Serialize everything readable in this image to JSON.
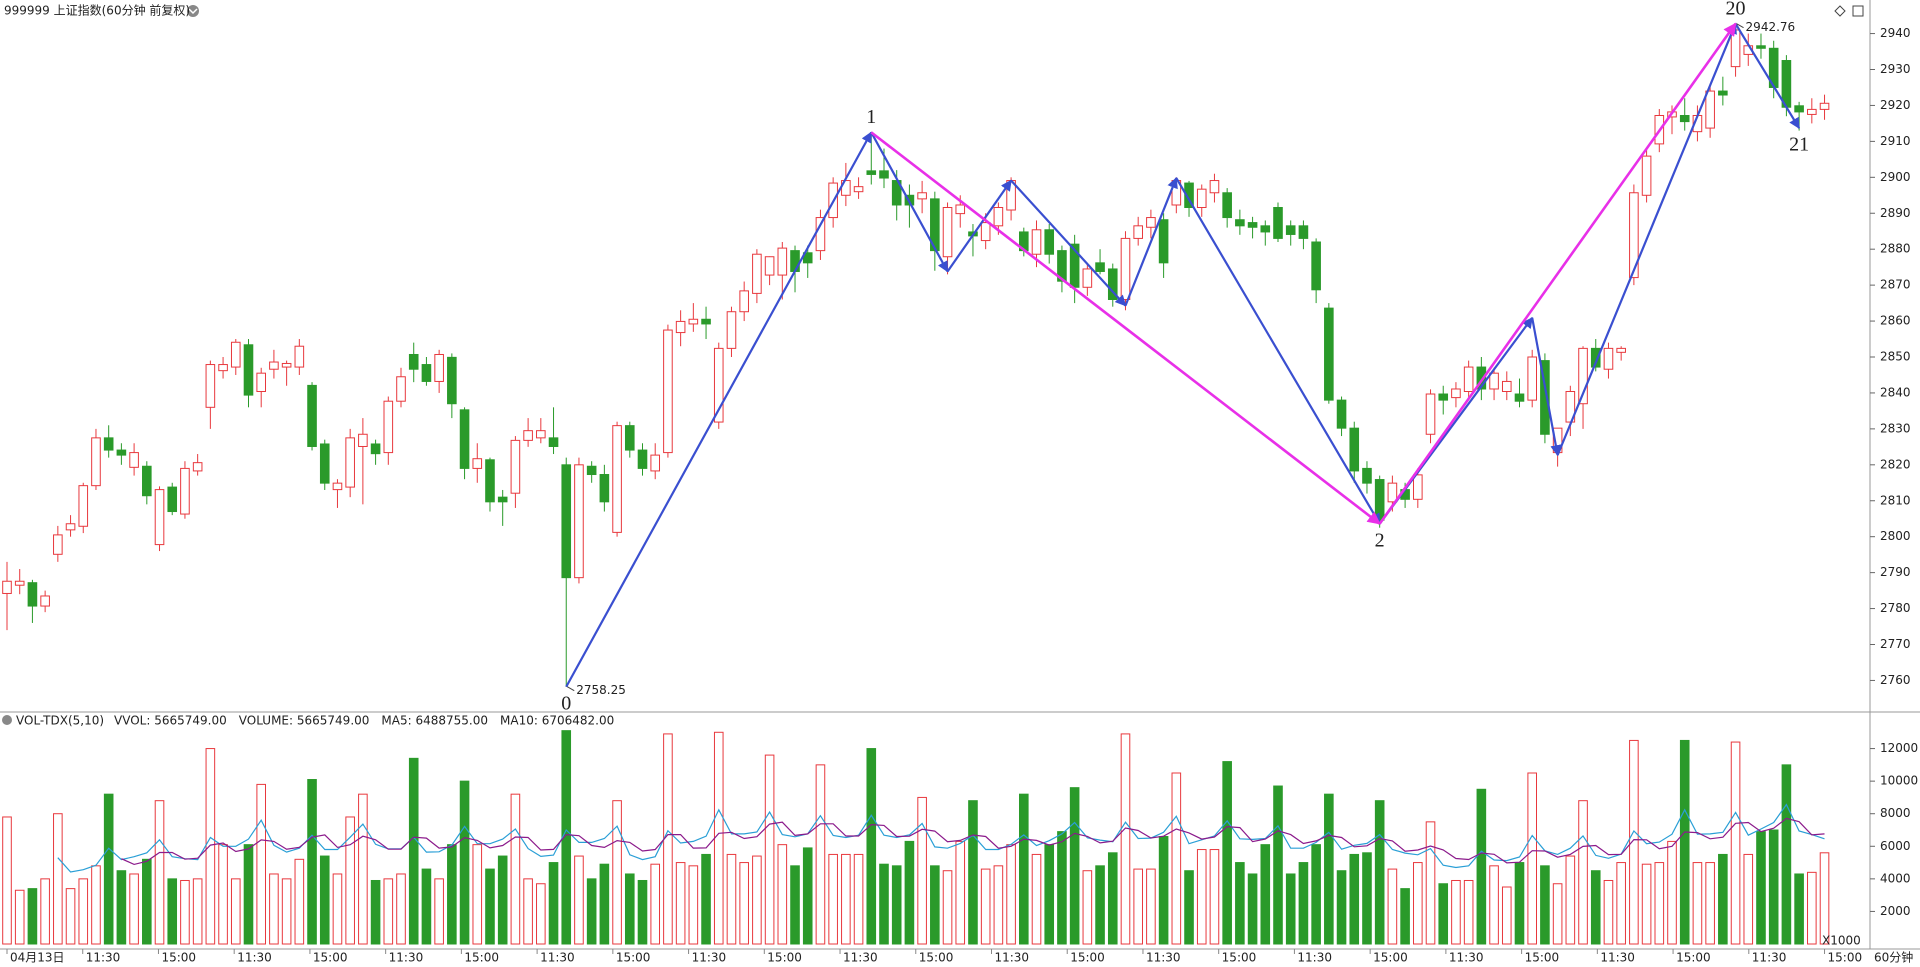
{
  "chart_data": [
    {
      "type": "candlestick",
      "title": "999999 上证指数(60分钟 前复权)",
      "up_color": "#e8383d",
      "down_color": "#2a9a2a",
      "ylim": [
        2754,
        2946
      ],
      "yticks": [
        2760,
        2770,
        2780,
        2790,
        2800,
        2810,
        2820,
        2830,
        2840,
        2850,
        2860,
        2870,
        2880,
        2890,
        2900,
        2910,
        2920,
        2930,
        2940
      ],
      "candles": [
        [
          2784.2,
          2793,
          2774,
          2787.6
        ],
        [
          2786.5,
          2791,
          2784,
          2787.6
        ],
        [
          2787.2,
          2788,
          2776,
          2780.7
        ],
        [
          2780.7,
          2785,
          2779,
          2783.5
        ],
        [
          2795.1,
          2803,
          2793,
          2800.5
        ],
        [
          2801.9,
          2806,
          2800,
          2803.6
        ],
        [
          2802.9,
          2815,
          2801,
          2814.2
        ],
        [
          2814.2,
          2830,
          2813,
          2827.5
        ],
        [
          2827.5,
          2831,
          2822,
          2824.1
        ],
        [
          2824.1,
          2826,
          2820,
          2822.7
        ],
        [
          2819.3,
          2826,
          2817,
          2823.4
        ],
        [
          2819.6,
          2821,
          2809,
          2811.4
        ],
        [
          2797.8,
          2814,
          2796,
          2813.1
        ],
        [
          2813.8,
          2815,
          2806,
          2807
        ],
        [
          2806.3,
          2821,
          2805,
          2819
        ],
        [
          2818.3,
          2823,
          2817,
          2820.6
        ],
        [
          2836,
          2849,
          2830,
          2847.9
        ],
        [
          2846.2,
          2850,
          2844,
          2847.9
        ],
        [
          2847.2,
          2855,
          2845,
          2854.1
        ],
        [
          2853.4,
          2855,
          2836,
          2839.4
        ],
        [
          2840.4,
          2847,
          2836,
          2845.5
        ],
        [
          2846.6,
          2852,
          2844,
          2848.6
        ],
        [
          2847.2,
          2849,
          2842,
          2848.2
        ],
        [
          2847.2,
          2855,
          2845,
          2853
        ],
        [
          2842.1,
          2843,
          2824,
          2825.1
        ],
        [
          2825.8,
          2827,
          2813,
          2814.9
        ],
        [
          2813.1,
          2816,
          2808,
          2814.9
        ],
        [
          2813.8,
          2830,
          2811,
          2827.5
        ],
        [
          2825.1,
          2833,
          2809,
          2828.5
        ],
        [
          2825.8,
          2827,
          2820,
          2823.1
        ],
        [
          2823.4,
          2839,
          2820,
          2837.7
        ],
        [
          2837.7,
          2847,
          2836,
          2844.5
        ],
        [
          2850.7,
          2854,
          2843,
          2846.6
        ],
        [
          2847.9,
          2850,
          2842,
          2843.2
        ],
        [
          2843.2,
          2852,
          2840,
          2850.7
        ],
        [
          2849.9,
          2851,
          2833,
          2837
        ],
        [
          2835.3,
          2836,
          2816,
          2819
        ],
        [
          2819,
          2826,
          2815,
          2821.7
        ],
        [
          2821.4,
          2822,
          2807,
          2809.7
        ],
        [
          2811,
          2813,
          2803,
          2809.7
        ],
        [
          2812.1,
          2828,
          2808,
          2826.8
        ],
        [
          2826.8,
          2833,
          2825,
          2829.5
        ],
        [
          2827.5,
          2833,
          2826,
          2829.5
        ],
        [
          2827.5,
          2836,
          2823,
          2825.1
        ],
        [
          2820,
          2822,
          2758.25,
          2788.6
        ],
        [
          2788.6,
          2822,
          2787,
          2820
        ],
        [
          2819.6,
          2821,
          2815,
          2817.3
        ],
        [
          2817.3,
          2820,
          2807,
          2809.7
        ],
        [
          2801.2,
          2832,
          2800,
          2830.9
        ],
        [
          2830.9,
          2832,
          2822,
          2824.1
        ],
        [
          2824.1,
          2826,
          2817,
          2819
        ],
        [
          2818.3,
          2826,
          2816,
          2822.7
        ],
        [
          2823.4,
          2859,
          2822,
          2857.5
        ],
        [
          2856.8,
          2863,
          2853,
          2859.9
        ],
        [
          2859.2,
          2865,
          2857,
          2860.5
        ],
        [
          2860.5,
          2864,
          2855,
          2859.2
        ],
        [
          2831.9,
          2854,
          2830,
          2852.4
        ],
        [
          2852.4,
          2864,
          2850,
          2862.6
        ],
        [
          2862.6,
          2871,
          2860,
          2868.4
        ],
        [
          2867.7,
          2880,
          2865,
          2878.6
        ],
        [
          2872.8,
          2878,
          2870,
          2877.9
        ],
        [
          2872.8,
          2882,
          2866,
          2880.3
        ],
        [
          2879.6,
          2881,
          2868,
          2873.8
        ],
        [
          2879,
          2881,
          2872,
          2876.2
        ],
        [
          2879.6,
          2891,
          2877,
          2888.8
        ],
        [
          2888.8,
          2900,
          2886,
          2898.4
        ],
        [
          2895,
          2904,
          2892,
          2899.1
        ],
        [
          2896,
          2900,
          2894,
          2897.4
        ],
        [
          2901.8,
          2912.5,
          2898,
          2900.8
        ],
        [
          2901.8,
          2908,
          2897,
          2899.8
        ],
        [
          2899.1,
          2902,
          2888,
          2892.3
        ],
        [
          2895,
          2898,
          2886,
          2892.3
        ],
        [
          2894,
          2899,
          2890,
          2895.7
        ],
        [
          2894,
          2896,
          2874,
          2879.6
        ],
        [
          2877.9,
          2893,
          2873,
          2891.6
        ],
        [
          2889.9,
          2895,
          2886,
          2892.3
        ],
        [
          2884.8,
          2887,
          2878,
          2883.7
        ],
        [
          2882.4,
          2890,
          2880,
          2887.4
        ],
        [
          2886.5,
          2893,
          2884,
          2891.6
        ],
        [
          2890.9,
          2900,
          2888,
          2899.1
        ],
        [
          2884.8,
          2886,
          2878,
          2879.6
        ],
        [
          2878.6,
          2888,
          2875,
          2885.4
        ],
        [
          2885.4,
          2887,
          2876,
          2878.6
        ],
        [
          2879.6,
          2881,
          2868,
          2871.1
        ],
        [
          2881.4,
          2884,
          2865,
          2869.4
        ],
        [
          2869.4,
          2876,
          2867,
          2874.5
        ],
        [
          2876.2,
          2880,
          2873,
          2873.8
        ],
        [
          2874.5,
          2876,
          2864,
          2866
        ],
        [
          2866,
          2885,
          2863,
          2883
        ],
        [
          2883,
          2889,
          2881,
          2886.5
        ],
        [
          2886.1,
          2891,
          2883,
          2888.8
        ],
        [
          2888.2,
          2890,
          2872,
          2876.2
        ],
        [
          2892.3,
          2900,
          2890,
          2899.1
        ],
        [
          2898.4,
          2899,
          2889,
          2891.6
        ],
        [
          2891.6,
          2898,
          2889,
          2896.7
        ],
        [
          2895.7,
          2901,
          2893,
          2899.1
        ],
        [
          2895.7,
          2897,
          2886,
          2888.8
        ],
        [
          2888.2,
          2891,
          2884,
          2886.5
        ],
        [
          2887.4,
          2889,
          2883,
          2886.1
        ],
        [
          2886.5,
          2888,
          2881,
          2884.8
        ],
        [
          2891.6,
          2893,
          2882,
          2883
        ],
        [
          2886.5,
          2888,
          2881,
          2884.1
        ],
        [
          2886.5,
          2888,
          2880,
          2883
        ],
        [
          2882,
          2883,
          2865,
          2868.7
        ],
        [
          2863.6,
          2865,
          2837,
          2838
        ],
        [
          2838,
          2839,
          2828,
          2830.2
        ],
        [
          2830.2,
          2832,
          2815,
          2818.3
        ],
        [
          2819,
          2821,
          2812,
          2814.9
        ],
        [
          2815.9,
          2817,
          2802.5,
          2804.6
        ],
        [
          2809.7,
          2817,
          2807,
          2814.9
        ],
        [
          2813.1,
          2815,
          2808,
          2810.4
        ],
        [
          2810.4,
          2819,
          2808,
          2817.2
        ],
        [
          2828.5,
          2841,
          2826,
          2839.7
        ],
        [
          2839.7,
          2842,
          2834,
          2838
        ],
        [
          2838.7,
          2843,
          2836,
          2841.1
        ],
        [
          2840.4,
          2849,
          2838,
          2847.2
        ],
        [
          2847.2,
          2850,
          2838,
          2841.1
        ],
        [
          2841.1,
          2847,
          2838,
          2845.5
        ],
        [
          2840.4,
          2846,
          2838,
          2843.2
        ],
        [
          2839.7,
          2844,
          2836,
          2837.7
        ],
        [
          2838,
          2852,
          2836,
          2850
        ],
        [
          2849,
          2851,
          2826,
          2828.5
        ],
        [
          2823.4,
          2830,
          2819.5,
          2830.2
        ],
        [
          2831.9,
          2842,
          2828,
          2840.4
        ],
        [
          2837,
          2853,
          2830,
          2852.4
        ],
        [
          2852.4,
          2855,
          2846,
          2847.2
        ],
        [
          2846.6,
          2854,
          2844,
          2852.4
        ],
        [
          2851.3,
          2853,
          2849,
          2852.4
        ],
        [
          2872.1,
          2898,
          2870,
          2895.7
        ],
        [
          2895,
          2908,
          2893,
          2905.9
        ],
        [
          2909.3,
          2919,
          2907,
          2917.2
        ],
        [
          2916.8,
          2920,
          2912,
          2918.2
        ],
        [
          2917.2,
          2922,
          2913,
          2915.5
        ],
        [
          2912.7,
          2920,
          2910,
          2917.2
        ],
        [
          2913.7,
          2926,
          2911,
          2924
        ],
        [
          2924,
          2928,
          2920,
          2922.9
        ],
        [
          2930.8,
          2942.76,
          2928,
          2941
        ],
        [
          2934.2,
          2940,
          2931,
          2936.6
        ],
        [
          2936.6,
          2940,
          2933,
          2935.9
        ],
        [
          2935.9,
          2938,
          2922,
          2925
        ],
        [
          2932.5,
          2934,
          2917,
          2919.5
        ],
        [
          2919.9,
          2921,
          2913,
          2918.2
        ],
        [
          2917.5,
          2922,
          2915,
          2918.9
        ],
        [
          2918.9,
          2923,
          2916,
          2920.6
        ]
      ],
      "zigzags": [
        {
          "color": "#3a4fd0",
          "points": [
            [
              44,
              2758.25
            ],
            [
              68,
              2912.5
            ],
            [
              74,
              2873.8
            ],
            [
              79,
              2899.1
            ],
            [
              88,
              2864.3
            ],
            [
              92,
              2899.8
            ],
            [
              108,
              2803.6
            ],
            [
              120,
              2860.9
            ],
            [
              122,
              2822.7
            ],
            [
              136,
              2942.76
            ],
            [
              141,
              2913.7
            ]
          ]
        },
        {
          "color": "#e830e8",
          "points": [
            [
              68,
              2912.5
            ],
            [
              108,
              2803.6
            ],
            [
              136,
              2942.76
            ]
          ]
        }
      ],
      "point_labels": [
        {
          "index": 44,
          "price": 2758.25,
          "label": "0"
        },
        {
          "index": 68,
          "price": 2912.5,
          "label": "1"
        },
        {
          "index": 108,
          "price": 2803.6,
          "label": "2"
        },
        {
          "index": 136,
          "price": 2942.76,
          "label": "20"
        },
        {
          "index": 141,
          "price": 2913.7,
          "label": "21"
        }
      ],
      "extremes": [
        {
          "index": 44,
          "value": 2758.25
        },
        {
          "index": 136,
          "value": 2942.76
        }
      ]
    },
    {
      "type": "bar",
      "title": "VOL-TDX(5,10)",
      "header": [
        {
          "text": "VVOL: 5665749.00",
          "color": "#222222"
        },
        {
          "text": "VOLUME: 5665749.00",
          "color": "#1e7fd0"
        },
        {
          "text": "MA5: 6488755.00",
          "color": "#1e7fd0"
        },
        {
          "text": "MA10: 6706482.00",
          "color": "#a0109e"
        }
      ],
      "ma_colors": [
        "#2a9fd6",
        "#8b1a8b"
      ],
      "ylim": [
        0,
        14000
      ],
      "yticks": [
        2000,
        4000,
        6000,
        8000,
        10000,
        12000
      ],
      "unit_label": "X1000",
      "values": [
        7800,
        3300,
        3400,
        4000,
        8000,
        3400,
        4000,
        4800,
        9200,
        4500,
        4300,
        5200,
        8800,
        4000,
        3900,
        4000,
        12000,
        6100,
        4000,
        6100,
        9800,
        4300,
        4000,
        5200,
        10100,
        5400,
        4300,
        7800,
        9200,
        3900,
        4000,
        4300,
        11400,
        4600,
        4000,
        6100,
        10000,
        6100,
        4600,
        5400,
        9200,
        4000,
        3700,
        5000,
        13100,
        5400,
        4000,
        4900,
        8800,
        4300,
        3900,
        4900,
        12900,
        5000,
        4800,
        5500,
        13000,
        5500,
        5000,
        5400,
        11600,
        6100,
        4800,
        5900,
        11000,
        5500,
        5500,
        5500,
        12000,
        4900,
        4800,
        6300,
        9000,
        4800,
        4500,
        6300,
        8800,
        4600,
        4800,
        6100,
        9200,
        5500,
        6100,
        6900,
        9600,
        4500,
        4800,
        5600,
        12900,
        4600,
        4600,
        6600,
        10500,
        4500,
        5800,
        5800,
        11200,
        5000,
        4300,
        6100,
        9700,
        4300,
        5000,
        6100,
        9200,
        4500,
        5500,
        5600,
        8800,
        4600,
        3400,
        5000,
        7500,
        3700,
        3900,
        3900,
        9500,
        4800,
        3500,
        5000,
        10500,
        4800,
        3700,
        5400,
        8800,
        4500,
        3900,
        5000,
        12500,
        4900,
        5000,
        6300,
        12500,
        5000,
        5000,
        5500,
        12400,
        5500,
        6900,
        7000,
        11000,
        4300,
        4400,
        5600
      ],
      "time_labels": [
        "04月13日",
        "11:30",
        "15:00",
        "11:30",
        "15:00",
        "11:30",
        "15:00",
        "11:30",
        "15:00",
        "11:30",
        "15:00",
        "11:30",
        "15:00",
        "11:30",
        "15:00",
        "11:30",
        "15:00",
        "11:30",
        "15:00",
        "11:30",
        "15:00",
        "11:30",
        "15:00",
        "11:30",
        "15:00"
      ],
      "period": "60分钟"
    }
  ]
}
